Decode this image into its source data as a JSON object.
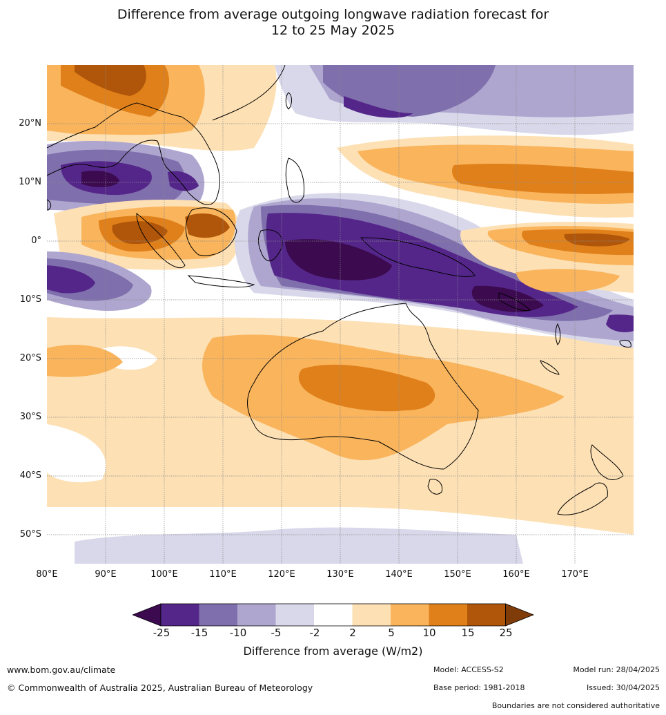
{
  "title": {
    "line1": "Difference from average outgoing longwave radiation forecast for",
    "line2": "12 to 25 May 2025"
  },
  "map": {
    "lat_labels": [
      "20°N",
      "10°N",
      "0°",
      "10°S",
      "20°S",
      "30°S",
      "40°S",
      "50°S"
    ],
    "lon_labels": [
      "80°E",
      "90°E",
      "100°E",
      "110°E",
      "120°E",
      "130°E",
      "140°E",
      "150°E",
      "160°E",
      "170°E"
    ],
    "extent": {
      "lon_min": 80,
      "lon_max": 180,
      "lat_min": -55,
      "lat_max": 30
    },
    "palette": {
      "le_-25": "#3b0a4f",
      "-25_-15": "#55268a",
      "-15_-10": "#7f6fac",
      "-10_-5": "#aea6cf",
      "-5_-2": "#d8d8ea",
      "-2_2": "#ffffff",
      "2_5": "#fde0b4",
      "5_10": "#f9b45c",
      "10_15": "#e0801a",
      "15_25": "#b0560a",
      "ge_25": "#7f3b08"
    }
  },
  "colorbar": {
    "ticks": [
      "-25",
      "-15",
      "-10",
      "-5",
      "-2",
      "2",
      "5",
      "10",
      "15",
      "25"
    ],
    "label": "Difference from average (W/m2)"
  },
  "footer": {
    "website": "www.bom.gov.au/climate",
    "copyright": "© Commonwealth of Australia 2025, Australian Bureau of Meteorology",
    "model": "Model: ACCESS-S2",
    "base_period": "Base period: 1981-2018",
    "model_run": "Model run: 28/04/2025",
    "issued": "Issued: 30/04/2025",
    "disclaimer": "Boundaries are not considered authoritative"
  }
}
